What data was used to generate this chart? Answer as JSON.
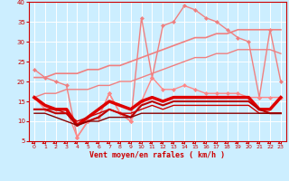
{
  "x": [
    0,
    1,
    2,
    3,
    4,
    5,
    6,
    7,
    8,
    9,
    10,
    11,
    12,
    13,
    14,
    15,
    16,
    17,
    18,
    19,
    20,
    21,
    22,
    23
  ],
  "series": [
    {
      "name": "upper_salmon_jagged",
      "color": "#f08080",
      "linewidth": 1.0,
      "marker": "D",
      "markersize": 2.0,
      "y": [
        23,
        21,
        20,
        19,
        6,
        10,
        11,
        17,
        12,
        10,
        36,
        21,
        34,
        35,
        39,
        38,
        36,
        35,
        33,
        31,
        30,
        16,
        33,
        20
      ]
    },
    {
      "name": "upper_trend_line1",
      "color": "#f08080",
      "linewidth": 1.2,
      "marker": null,
      "y": [
        21,
        21,
        22,
        22,
        22,
        23,
        23,
        24,
        24,
        25,
        26,
        27,
        28,
        29,
        30,
        31,
        31,
        32,
        32,
        33,
        33,
        33,
        33,
        33
      ]
    },
    {
      "name": "upper_trend_line2",
      "color": "#f08080",
      "linewidth": 1.0,
      "marker": null,
      "y": [
        16,
        17,
        17,
        18,
        18,
        18,
        19,
        19,
        20,
        20,
        21,
        22,
        23,
        24,
        25,
        26,
        26,
        27,
        27,
        28,
        28,
        28,
        28,
        27
      ]
    },
    {
      "name": "mid_pink_diamonds",
      "color": "#ff8888",
      "linewidth": 1.0,
      "marker": "D",
      "markersize": 2.0,
      "y": [
        16,
        13,
        13,
        13,
        6,
        10,
        11,
        17,
        12,
        10,
        15,
        21,
        18,
        18,
        19,
        18,
        17,
        17,
        17,
        17,
        16,
        16,
        16,
        16
      ]
    },
    {
      "name": "red_bold1",
      "color": "#dd0000",
      "linewidth": 2.5,
      "marker": null,
      "y": [
        16,
        14,
        13,
        13,
        9,
        11,
        13,
        15,
        14,
        13,
        15,
        16,
        15,
        16,
        16,
        16,
        16,
        16,
        16,
        16,
        16,
        13,
        13,
        16
      ]
    },
    {
      "name": "red_bold2",
      "color": "#bb0000",
      "linewidth": 1.5,
      "marker": null,
      "y": [
        13,
        13,
        12,
        12,
        9,
        10,
        11,
        13,
        12,
        11,
        14,
        15,
        14,
        15,
        15,
        15,
        15,
        15,
        15,
        15,
        15,
        13,
        12,
        12
      ]
    },
    {
      "name": "red_med",
      "color": "#cc0000",
      "linewidth": 1.0,
      "marker": null,
      "y": [
        13,
        13,
        13,
        12,
        10,
        11,
        12,
        13,
        12,
        12,
        13,
        14,
        13,
        14,
        14,
        14,
        14,
        14,
        14,
        14,
        14,
        12,
        12,
        12
      ]
    },
    {
      "name": "dark_red_flat",
      "color": "#880000",
      "linewidth": 1.0,
      "marker": null,
      "y": [
        12,
        12,
        11,
        10,
        9,
        10,
        10,
        11,
        11,
        11,
        12,
        12,
        12,
        12,
        12,
        12,
        12,
        12,
        12,
        12,
        12,
        12,
        12,
        12
      ]
    }
  ],
  "xlabel": "Vent moyen/en rafales ( km/h )",
  "xlim": [
    -0.5,
    23.5
  ],
  "ylim": [
    5,
    40
  ],
  "yticks": [
    5,
    10,
    15,
    20,
    25,
    30,
    35,
    40
  ],
  "xticks": [
    0,
    1,
    2,
    3,
    4,
    5,
    6,
    7,
    8,
    9,
    10,
    11,
    12,
    13,
    14,
    15,
    16,
    17,
    18,
    19,
    20,
    21,
    22,
    23
  ],
  "bg_color": "#cceeff",
  "grid_color": "#ffffff",
  "axis_color": "#cc0000",
  "tick_color": "#cc0000",
  "label_color": "#cc0000"
}
